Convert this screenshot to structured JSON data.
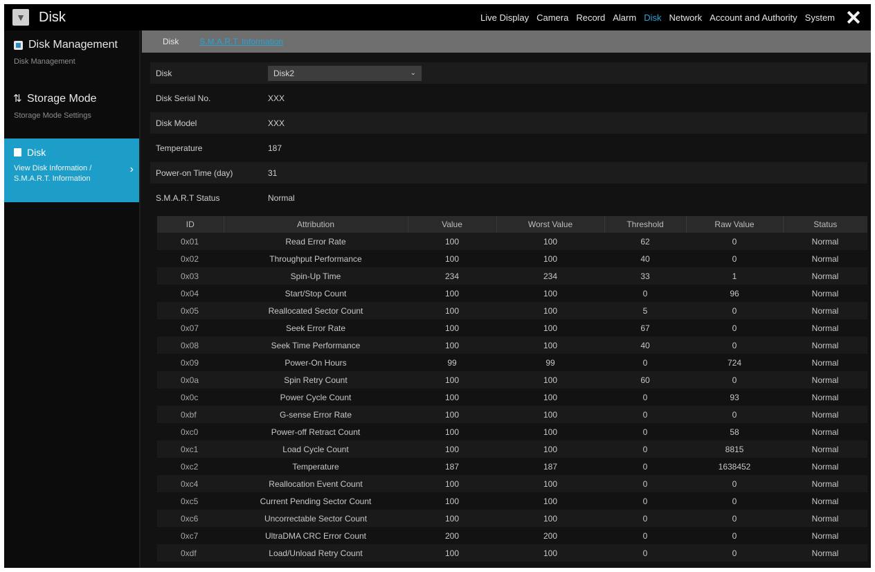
{
  "window": {
    "title": "Disk",
    "icon": "camera-app-icon"
  },
  "topnav": [
    {
      "label": "Live Display",
      "active": false
    },
    {
      "label": "Camera",
      "active": false
    },
    {
      "label": "Record",
      "active": false
    },
    {
      "label": "Alarm",
      "active": false
    },
    {
      "label": "Disk",
      "active": true
    },
    {
      "label": "Network",
      "active": false
    },
    {
      "label": "Account and Authority",
      "active": false
    },
    {
      "label": "System",
      "active": false
    }
  ],
  "sidebar": {
    "items": [
      {
        "title": "Disk Management",
        "sub": "Disk Management"
      },
      {
        "title": "Storage Mode",
        "sub": "Storage Mode Settings"
      },
      {
        "title": "Disk",
        "sub": "View Disk Information / S.M.A.R.T. Information"
      }
    ]
  },
  "tabs": [
    {
      "label": "Disk"
    },
    {
      "label": "S.M.A.R.T. Information"
    }
  ],
  "form": {
    "disk_label": "Disk",
    "disk_value": "Disk2",
    "serial_label": "Disk Serial No.",
    "serial_value": "XXX",
    "model_label": "Disk Model",
    "model_value": "XXX",
    "temp_label": "Temperature",
    "temp_value": "187",
    "power_label": "Power-on Time (day)",
    "power_value": "31",
    "smart_label": "S.M.A.R.T Status",
    "smart_value": "Normal"
  },
  "table": {
    "headers": [
      "ID",
      "Attribution",
      "Value",
      "Worst Value",
      "Threshold",
      "Raw Value",
      "Status"
    ],
    "rows": [
      [
        "0x01",
        "Read Error Rate",
        "100",
        "100",
        "62",
        "0",
        "Normal"
      ],
      [
        "0x02",
        "Throughput Performance",
        "100",
        "100",
        "40",
        "0",
        "Normal"
      ],
      [
        "0x03",
        "Spin-Up Time",
        "234",
        "234",
        "33",
        "1",
        "Normal"
      ],
      [
        "0x04",
        "Start/Stop Count",
        "100",
        "100",
        "0",
        "96",
        "Normal"
      ],
      [
        "0x05",
        "Reallocated Sector Count",
        "100",
        "100",
        "5",
        "0",
        "Normal"
      ],
      [
        "0x07",
        "Seek Error Rate",
        "100",
        "100",
        "67",
        "0",
        "Normal"
      ],
      [
        "0x08",
        "Seek Time Performance",
        "100",
        "100",
        "40",
        "0",
        "Normal"
      ],
      [
        "0x09",
        "Power-On Hours",
        "99",
        "99",
        "0",
        "724",
        "Normal"
      ],
      [
        "0x0a",
        "Spin Retry Count",
        "100",
        "100",
        "60",
        "0",
        "Normal"
      ],
      [
        "0x0c",
        "Power Cycle Count",
        "100",
        "100",
        "0",
        "93",
        "Normal"
      ],
      [
        "0xbf",
        "G-sense Error Rate",
        "100",
        "100",
        "0",
        "0",
        "Normal"
      ],
      [
        "0xc0",
        "Power-off Retract Count",
        "100",
        "100",
        "0",
        "58",
        "Normal"
      ],
      [
        "0xc1",
        "Load Cycle Count",
        "100",
        "100",
        "0",
        "8815",
        "Normal"
      ],
      [
        "0xc2",
        "Temperature",
        "187",
        "187",
        "0",
        "1638452",
        "Normal"
      ],
      [
        "0xc4",
        "Reallocation Event Count",
        "100",
        "100",
        "0",
        "0",
        "Normal"
      ],
      [
        "0xc5",
        "Current Pending Sector Count",
        "100",
        "100",
        "0",
        "0",
        "Normal"
      ],
      [
        "0xc6",
        "Uncorrectable Sector Count",
        "100",
        "100",
        "0",
        "0",
        "Normal"
      ],
      [
        "0xc7",
        "UltraDMA CRC Error Count",
        "200",
        "200",
        "0",
        "0",
        "Normal"
      ],
      [
        "0xdf",
        "Load/Unload Retry Count",
        "100",
        "100",
        "0",
        "0",
        "Normal"
      ]
    ]
  }
}
